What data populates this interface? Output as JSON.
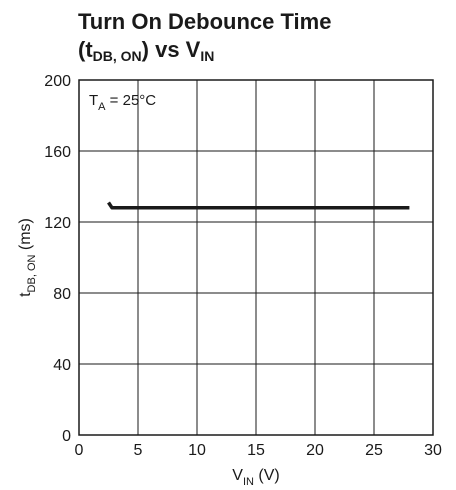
{
  "chart_data": {
    "type": "line",
    "title": {
      "line1": "Turn On Debounce Time",
      "line2_open": "(t",
      "line2_sub": "DB, ON",
      "line2_mid": ") vs V",
      "line2_sub2": "IN"
    },
    "xlabel": {
      "main": "V",
      "sub": "IN",
      "unit": " (V)"
    },
    "ylabel": {
      "main": "t",
      "sub": "DB, ON",
      "unit": " (ms)"
    },
    "annotation": {
      "main": "T",
      "sub": "A",
      "rest": " = 25°C"
    },
    "xlim": [
      0,
      30
    ],
    "ylim": [
      0,
      200
    ],
    "x_ticks": [
      0,
      5,
      10,
      15,
      20,
      25,
      30
    ],
    "y_ticks": [
      0,
      40,
      80,
      120,
      160,
      200
    ],
    "grid": true,
    "series": [
      {
        "x": [
          2.5,
          2.8,
          5,
          10,
          15,
          20,
          25,
          28
        ],
        "y": [
          131,
          128,
          128,
          128,
          128,
          128,
          128,
          128
        ]
      }
    ]
  }
}
